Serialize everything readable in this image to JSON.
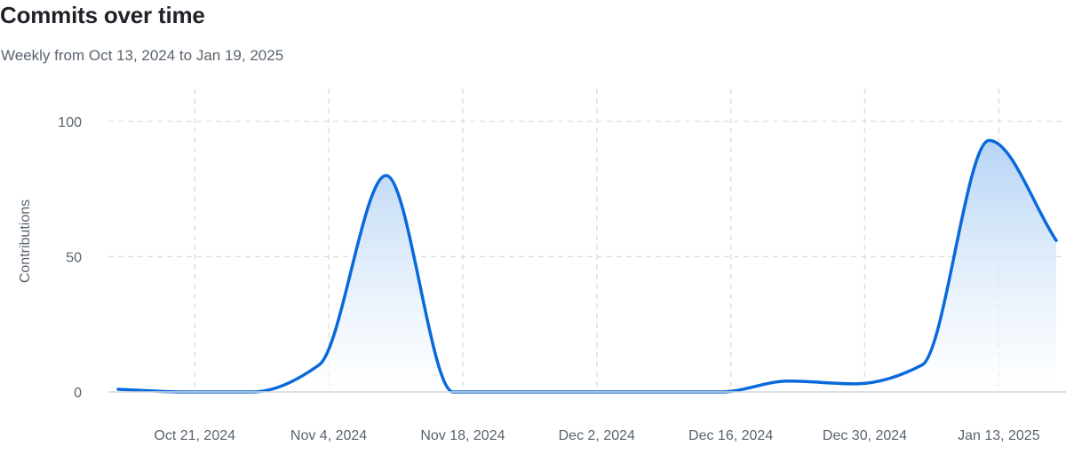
{
  "header": {
    "title": "Commits over time",
    "subtitle": "Weekly from Oct 13, 2024 to Jan 19, 2025"
  },
  "colors": {
    "line": "#0969da",
    "fill_top": "#b6d4f5",
    "grid": "#d9dcdf",
    "axis": "#d0d7de",
    "text": "#59636e"
  },
  "chart_data": {
    "type": "area",
    "title": "Commits over time",
    "subtitle": "Weekly from Oct 13, 2024 to Jan 19, 2025",
    "xlabel": "",
    "ylabel": "Contributions",
    "x": [
      "2024-10-13",
      "2024-10-20",
      "2024-10-27",
      "2024-11-03",
      "2024-11-10",
      "2024-11-17",
      "2024-11-24",
      "2024-12-01",
      "2024-12-08",
      "2024-12-15",
      "2024-12-22",
      "2024-12-29",
      "2025-01-05",
      "2025-01-12",
      "2025-01-19"
    ],
    "series": [
      {
        "values": [
          1,
          0,
          0,
          10,
          80,
          0,
          0,
          0,
          0,
          0,
          4,
          3,
          10,
          93,
          56
        ]
      }
    ],
    "xlim": [
      "2024-10-13",
      "2025-01-19"
    ],
    "ylim": [
      0,
      100
    ],
    "yticks": [
      0,
      50,
      100
    ],
    "xticks": [
      {
        "date": "2024-10-21",
        "label": "Oct 21, 2024"
      },
      {
        "date": "2024-11-04",
        "label": "Nov 4, 2024"
      },
      {
        "date": "2024-11-18",
        "label": "Nov 18, 2024"
      },
      {
        "date": "2024-12-02",
        "label": "Dec 2, 2024"
      },
      {
        "date": "2024-12-16",
        "label": "Dec 16, 2024"
      },
      {
        "date": "2024-12-30",
        "label": "Dec 30, 2024"
      },
      {
        "date": "2025-01-13",
        "label": "Jan 13, 2025"
      }
    ],
    "grid": true,
    "legend": "none"
  }
}
